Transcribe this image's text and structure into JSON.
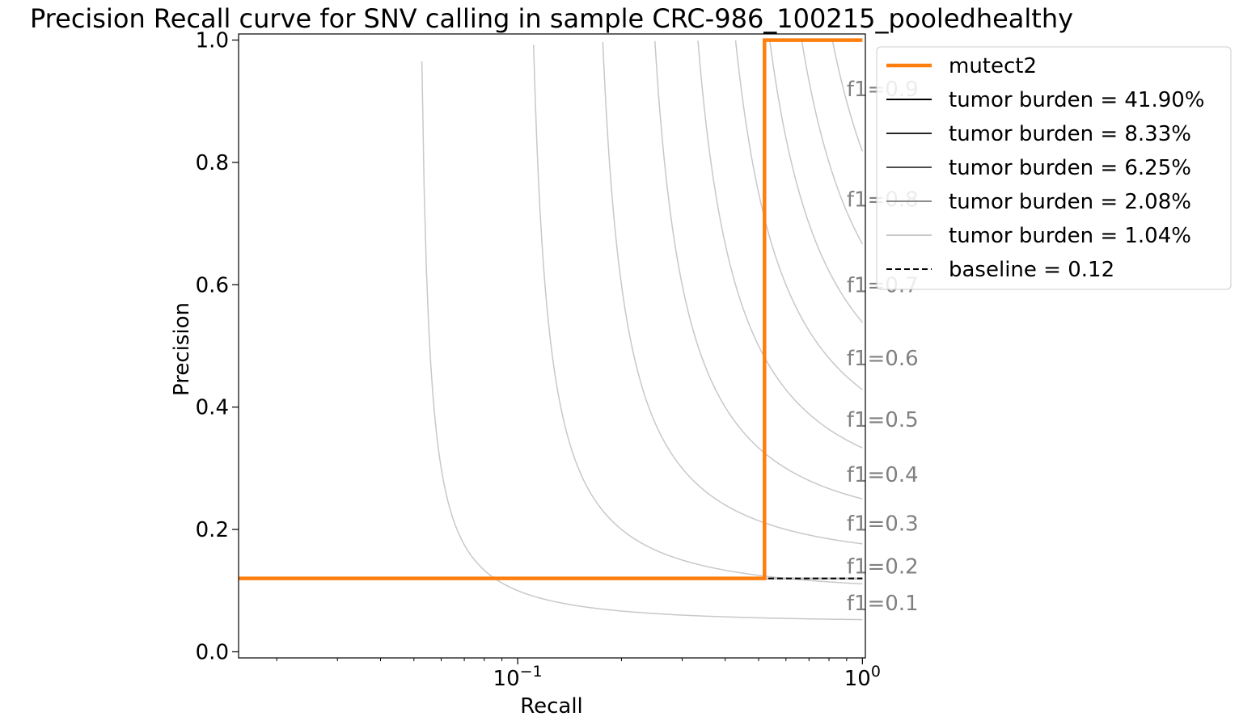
{
  "chart_data": {
    "type": "line",
    "title": "Precision Recall curve for SNV calling in sample CRC-986_100215_pooledhealthy",
    "xlabel": "Recall",
    "ylabel": "Precision",
    "xscale": "log",
    "xlim": [
      0.0155,
      1.02
    ],
    "ylim": [
      -0.01,
      1.01
    ],
    "grid": false,
    "x_ticks": [
      {
        "value": 0.1,
        "base": "10",
        "exp": "−1"
      },
      {
        "value": 1.0,
        "base": "10",
        "exp": "0"
      }
    ],
    "y_ticks": [
      {
        "value": 0.0,
        "label": "0.0"
      },
      {
        "value": 0.2,
        "label": "0.2"
      },
      {
        "value": 0.4,
        "label": "0.4"
      },
      {
        "value": 0.6,
        "label": "0.6"
      },
      {
        "value": 0.8,
        "label": "0.8"
      },
      {
        "value": 1.0,
        "label": "1.0"
      }
    ],
    "legend_position": "outside upper right",
    "series": [
      {
        "name": "mutect2",
        "color": "#ff7f0e",
        "style": "solid",
        "x": [
          1.0,
          0.52,
          0.52,
          0.0
        ],
        "y": [
          1.0,
          1.0,
          0.12,
          0.12
        ]
      },
      {
        "name": "tumor burden = 41.90%",
        "color": "#000000",
        "style": "solid",
        "x": [
          0.0,
          1.0
        ],
        "y": [
          0.12,
          0.12
        ]
      },
      {
        "name": "tumor burden = 8.33%",
        "color": "#262626",
        "style": "solid",
        "x": [
          0.0,
          1.0
        ],
        "y": [
          0.12,
          0.12
        ]
      },
      {
        "name": "tumor burden = 6.25%",
        "color": "#4d4d4d",
        "style": "solid",
        "x": [
          0.0,
          1.0
        ],
        "y": [
          0.12,
          0.12
        ]
      },
      {
        "name": "tumor burden = 2.08%",
        "color": "#8c8c8c",
        "style": "solid",
        "x": [
          0.0,
          1.0
        ],
        "y": [
          0.12,
          0.12
        ]
      },
      {
        "name": "tumor burden = 1.04%",
        "color": "#c8c8c8",
        "style": "solid",
        "x": [
          0.0,
          1.0
        ],
        "y": [
          0.12,
          0.12
        ]
      },
      {
        "name": "baseline = 0.12",
        "color": "#000000",
        "style": "dashed",
        "x": [
          0.0,
          1.0
        ],
        "y": [
          0.12,
          0.12
        ]
      }
    ],
    "iso_f1": [
      {
        "f1": 0.1,
        "label": "f1=0.1",
        "label_y": 0.08
      },
      {
        "f1": 0.2,
        "label": "f1=0.2",
        "label_y": 0.14
      },
      {
        "f1": 0.3,
        "label": "f1=0.3",
        "label_y": 0.21
      },
      {
        "f1": 0.4,
        "label": "f1=0.4",
        "label_y": 0.29
      },
      {
        "f1": 0.5,
        "label": "f1=0.5",
        "label_y": 0.38
      },
      {
        "f1": 0.6,
        "label": "f1=0.6",
        "label_y": 0.48
      },
      {
        "f1": 0.7,
        "label": "f1=0.7",
        "label_y": 0.6
      },
      {
        "f1": 0.8,
        "label": "f1=0.8",
        "label_y": 0.74
      },
      {
        "f1": 0.9,
        "label": "f1=0.9",
        "label_y": 0.92
      }
    ],
    "iso_f1_color": "#c8c8c8",
    "iso_f1_label_color": "#808080"
  }
}
